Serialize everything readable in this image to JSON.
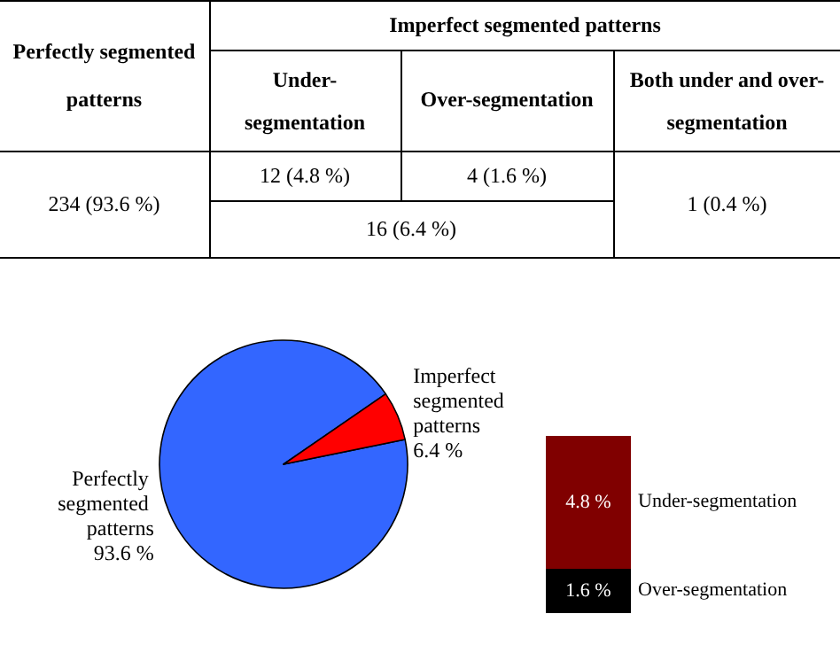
{
  "chart_data": [
    {
      "type": "other",
      "annotations": [
        "Perfectly segmented patterns",
        "Imperfect segmented patterns",
        "Under-segmentation",
        "Over-segmentation",
        "Both under and over-segmentation",
        "234 (93.6 %)",
        "12 (4.8 %)",
        "4 (1.6 %)",
        "1 (0.4 %)",
        "16 (6.4 %)"
      ]
    },
    {
      "type": "pie",
      "categories": [
        "Perfectly segmented patterns",
        "Imperfect segmented patterns"
      ],
      "values": [
        93.6,
        6.4
      ],
      "colors": [
        "#3366ff",
        "#ff0000"
      ],
      "value_labels": [
        "93.6 %",
        "6.4 %"
      ]
    },
    {
      "type": "bar",
      "stacked": true,
      "categories": [
        null
      ],
      "series": [
        {
          "name": "Over-segmentation",
          "color": "#000000",
          "values": [
            1.6
          ],
          "value_labels": [
            "1.6 %"
          ]
        },
        {
          "name": "Under-segmentation",
          "color": "#800000",
          "values": [
            4.8
          ],
          "value_labels": [
            "4.8 %"
          ]
        }
      ]
    }
  ]
}
